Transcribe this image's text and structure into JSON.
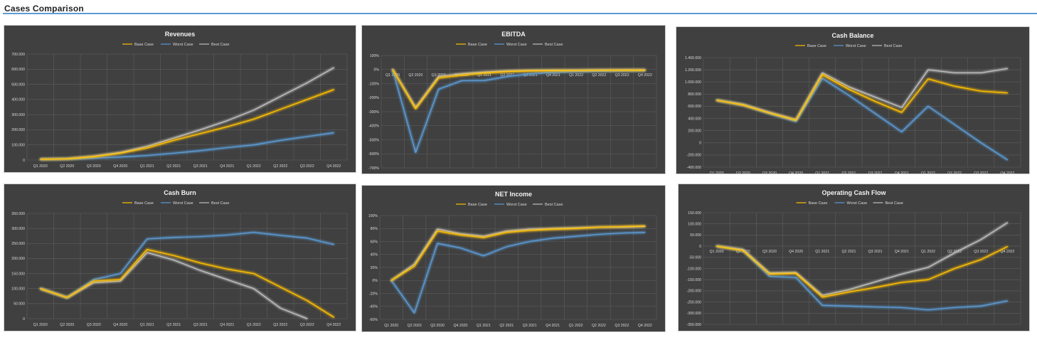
{
  "page": {
    "title": "Cases Comparison"
  },
  "colors": {
    "base": "#ffc000",
    "worst": "#5b9bd5",
    "best": "#bfbfbf",
    "background": "#404040",
    "grid": "#5e5e5e",
    "title_rule": "#5b9bd5"
  },
  "legend": [
    "Base Case",
    "Worst Case",
    "Best Case"
  ],
  "chart_data": [
    {
      "id": "revenues",
      "type": "line",
      "title": "Revenues",
      "categories": [
        "Q1 2020",
        "Q2 2020",
        "Q3 2020",
        "Q4 2020",
        "Q1 2021",
        "Q2 2021",
        "Q3 2021",
        "Q4 2021",
        "Q1 2022",
        "Q2 2022",
        "Q3 2022",
        "Q4 2022"
      ],
      "ylim": [
        0,
        700000
      ],
      "yticks": [
        0,
        100000,
        200000,
        300000,
        400000,
        500000,
        600000,
        700000
      ],
      "ytick_labels": [
        "0",
        "100.000",
        "200.000",
        "300.000",
        "400.000",
        "500.000",
        "600.000",
        "700.000"
      ],
      "grid": true,
      "legend_position": "top",
      "series": [
        {
          "name": "Base Case",
          "values": [
            5000,
            8000,
            22000,
            45000,
            80000,
            130000,
            175000,
            220000,
            270000,
            335000,
            400000,
            465000
          ]
        },
        {
          "name": "Worst Case",
          "values": [
            5000,
            7000,
            12000,
            20000,
            30000,
            45000,
            62000,
            82000,
            100000,
            130000,
            155000,
            180000
          ]
        },
        {
          "name": "Best Case",
          "values": [
            5000,
            9000,
            25000,
            50000,
            90000,
            145000,
            200000,
            260000,
            330000,
            420000,
            510000,
            610000
          ]
        }
      ]
    },
    {
      "id": "ebitda",
      "type": "line",
      "title": "EBITDA",
      "categories": [
        "Q1 2020",
        "Q2 2020",
        "Q3 2020",
        "Q4 2020",
        "Q1 2021",
        "Q2 2021",
        "Q3 2021",
        "Q4 2021",
        "Q1 2022",
        "Q2 2022",
        "Q3 2022",
        "Q4 2022"
      ],
      "ylim": [
        -700,
        100
      ],
      "yticks": [
        100,
        0,
        -100,
        -200,
        -300,
        -400,
        -500,
        -600,
        -700
      ],
      "ytick_labels": [
        "100%",
        "0%",
        "-100%",
        "-200%",
        "-300%",
        "-400%",
        "-500%",
        "-600%",
        "-700%"
      ],
      "xaxis_at_zero": true,
      "grid": true,
      "legend_position": "top",
      "series": [
        {
          "name": "Base Case",
          "values": [
            0,
            -280,
            -60,
            -40,
            -25,
            -15,
            -10,
            -8,
            -7,
            -6,
            -5,
            -5
          ]
        },
        {
          "name": "Worst Case",
          "values": [
            0,
            -590,
            -140,
            -80,
            -78,
            -50,
            -30,
            -20,
            -15,
            -12,
            -10,
            -8
          ]
        },
        {
          "name": "Best Case",
          "values": [
            0,
            -270,
            -50,
            -30,
            -18,
            -10,
            -6,
            -5,
            -4,
            -3,
            -3,
            -2
          ]
        }
      ]
    },
    {
      "id": "cash-balance",
      "type": "line",
      "title": "Cash Balance",
      "categories": [
        "Q1 2020",
        "Q2 2020",
        "Q3 2020",
        "Q4 2020",
        "Q1 2021",
        "Q2 2021",
        "Q3 2021",
        "Q4 2021",
        "Q1 2022",
        "Q2 2022",
        "Q3 2022",
        "Q4 2022"
      ],
      "ylim": [
        -400000,
        1400000
      ],
      "yticks": [
        1400000,
        1200000,
        1000000,
        800000,
        600000,
        400000,
        200000,
        0,
        -200000,
        -400000
      ],
      "ytick_labels": [
        "1.400.000",
        "1.200.000",
        "1.000.000",
        "800.000",
        "600.000",
        "400.000",
        "200.000",
        "0",
        "-200.000",
        "-400.000"
      ],
      "grid": true,
      "legend_position": "top",
      "series": [
        {
          "name": "Base Case",
          "values": [
            700000,
            620000,
            490000,
            370000,
            1120000,
            880000,
            680000,
            500000,
            1050000,
            930000,
            850000,
            820000
          ]
        },
        {
          "name": "Worst Case",
          "values": [
            700000,
            620000,
            480000,
            350000,
            1060000,
            780000,
            480000,
            180000,
            600000,
            300000,
            0,
            -280000
          ]
        },
        {
          "name": "Best Case",
          "values": [
            700000,
            630000,
            500000,
            380000,
            1150000,
            920000,
            750000,
            580000,
            1200000,
            1150000,
            1150000,
            1220000
          ]
        }
      ]
    },
    {
      "id": "cash-burn",
      "type": "line",
      "title": "Cash Burn",
      "categories": [
        "Q1 2020",
        "Q2 2020",
        "Q3 2020",
        "Q4 2020",
        "Q1 2021",
        "Q2 2021",
        "Q3 2021",
        "Q4 2021",
        "Q1 2022",
        "Q2 2022",
        "Q3 2022",
        "Q4 2022"
      ],
      "ylim": [
        0,
        350000
      ],
      "yticks": [
        0,
        50000,
        100000,
        150000,
        200000,
        250000,
        300000,
        350000
      ],
      "ytick_labels": [
        "0",
        "50.000",
        "100.000",
        "150.000",
        "200.000",
        "250.000",
        "300.000",
        "350.000"
      ],
      "grid": true,
      "legend_position": "top",
      "series": [
        {
          "name": "Base Case",
          "values": [
            100000,
            70000,
            125000,
            130000,
            230000,
            210000,
            185000,
            165000,
            150000,
            105000,
            60000,
            5000
          ]
        },
        {
          "name": "Worst Case",
          "values": [
            100000,
            70000,
            130000,
            150000,
            265000,
            270000,
            273000,
            278000,
            287000,
            277000,
            268000,
            247000
          ]
        },
        {
          "name": "Best Case",
          "values": [
            100000,
            70000,
            120000,
            125000,
            220000,
            195000,
            160000,
            130000,
            100000,
            35000,
            0,
            null
          ]
        }
      ]
    },
    {
      "id": "net-income",
      "type": "line",
      "title": "NET Income",
      "categories": [
        "Q1 2020",
        "Q2 2020",
        "Q3 2020",
        "Q4 2020",
        "Q1 2021",
        "Q2 2021",
        "Q3 2021",
        "Q4 2021",
        "Q1 2022",
        "Q2 2022",
        "Q3 2022",
        "Q4 2022"
      ],
      "ylim": [
        -60,
        100
      ],
      "yticks": [
        100,
        80,
        60,
        40,
        20,
        0,
        -20,
        -40,
        -60
      ],
      "ytick_labels": [
        "100%",
        "80%",
        "60%",
        "40%",
        "20%",
        "0%",
        "-20%",
        "-40%",
        "-60%"
      ],
      "grid": true,
      "legend_position": "top",
      "series": [
        {
          "name": "Base Case",
          "values": [
            0,
            22,
            76,
            70,
            66,
            74,
            77,
            79,
            80,
            82,
            83,
            84
          ]
        },
        {
          "name": "Worst Case",
          "values": [
            0,
            -50,
            57,
            50,
            38,
            52,
            60,
            65,
            68,
            71,
            73,
            74
          ]
        },
        {
          "name": "Best Case",
          "values": [
            0,
            25,
            79,
            72,
            68,
            76,
            79,
            80,
            81,
            82,
            82,
            83
          ]
        }
      ]
    },
    {
      "id": "operating-cash-flow",
      "type": "line",
      "title": "Operating Cash Flow",
      "categories": [
        "Q1 2020",
        "Q2 2020",
        "Q3 2020",
        "Q4 2020",
        "Q1 2021",
        "Q2 2021",
        "Q3 2021",
        "Q4 2021",
        "Q1 2022",
        "Q2 2022",
        "Q3 2022",
        "Q4 2022"
      ],
      "ylim": [
        -350000,
        150000
      ],
      "yticks": [
        150000,
        100000,
        50000,
        0,
        -50000,
        -100000,
        -150000,
        -200000,
        -250000,
        -300000,
        -350000
      ],
      "ytick_labels": [
        "150.000",
        "100.000",
        "50.000",
        "0",
        "-50.000",
        "-100.000",
        "-150.000",
        "-200.000",
        "-250.000",
        "-300.000",
        "-350.000"
      ],
      "xaxis_at_zero": true,
      "grid": true,
      "legend_position": "top",
      "series": [
        {
          "name": "Base Case",
          "values": [
            0,
            -20000,
            -125000,
            -122000,
            -228000,
            -205000,
            -185000,
            -162000,
            -150000,
            -100000,
            -60000,
            -2000
          ]
        },
        {
          "name": "Worst Case",
          "values": [
            0,
            -20000,
            -135000,
            -140000,
            -265000,
            -268000,
            -272000,
            -275000,
            -285000,
            -275000,
            -268000,
            -245000
          ]
        },
        {
          "name": "Best Case",
          "values": [
            0,
            -15000,
            -120000,
            -118000,
            -220000,
            -195000,
            -160000,
            -125000,
            -95000,
            -30000,
            30000,
            105000
          ]
        }
      ]
    }
  ]
}
